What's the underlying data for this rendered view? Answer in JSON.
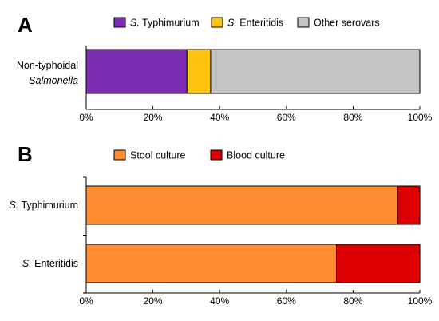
{
  "chart_data": [
    {
      "type": "bar",
      "orientation": "horizontal",
      "stacked": true,
      "panel": "A",
      "categories": [
        [
          "Non-typhoidal",
          "Salmonella"
        ]
      ],
      "series": [
        {
          "name": "S. Typhimurium",
          "name_italic": "S.",
          "name_rest": " Typhimurium",
          "color": "#7B2FB0",
          "values": [
            30.2
          ]
        },
        {
          "name": "S. Enteritidis",
          "name_italic": "S.",
          "name_rest": " Enteritidis",
          "color": "#FFC20E",
          "values": [
            7.1
          ]
        },
        {
          "name": "Other serovars",
          "name_italic": "",
          "name_rest": "Other serovars",
          "color": "#C4C4C4",
          "values": [
            62.7
          ]
        }
      ],
      "xlim": [
        0,
        100
      ],
      "xticks": [
        "0%",
        "20%",
        "40%",
        "60%",
        "80%",
        "100%"
      ],
      "legend": "top",
      "grid": false
    },
    {
      "type": "bar",
      "orientation": "horizontal",
      "stacked": true,
      "panel": "B",
      "categories": [
        [
          "S.",
          " Typhimurium"
        ],
        [
          "S.",
          " Enteritidis"
        ]
      ],
      "series": [
        {
          "name": "Stool culture",
          "color": "#FF8C2E",
          "values": [
            93.3,
            75.0
          ]
        },
        {
          "name": "Blood culture",
          "color": "#DD0000",
          "values": [
            6.7,
            25.0
          ]
        }
      ],
      "xlim": [
        0,
        100
      ],
      "xticks": [
        "0%",
        "20%",
        "40%",
        "60%",
        "80%",
        "100%"
      ],
      "legend": "top",
      "grid": false
    }
  ]
}
